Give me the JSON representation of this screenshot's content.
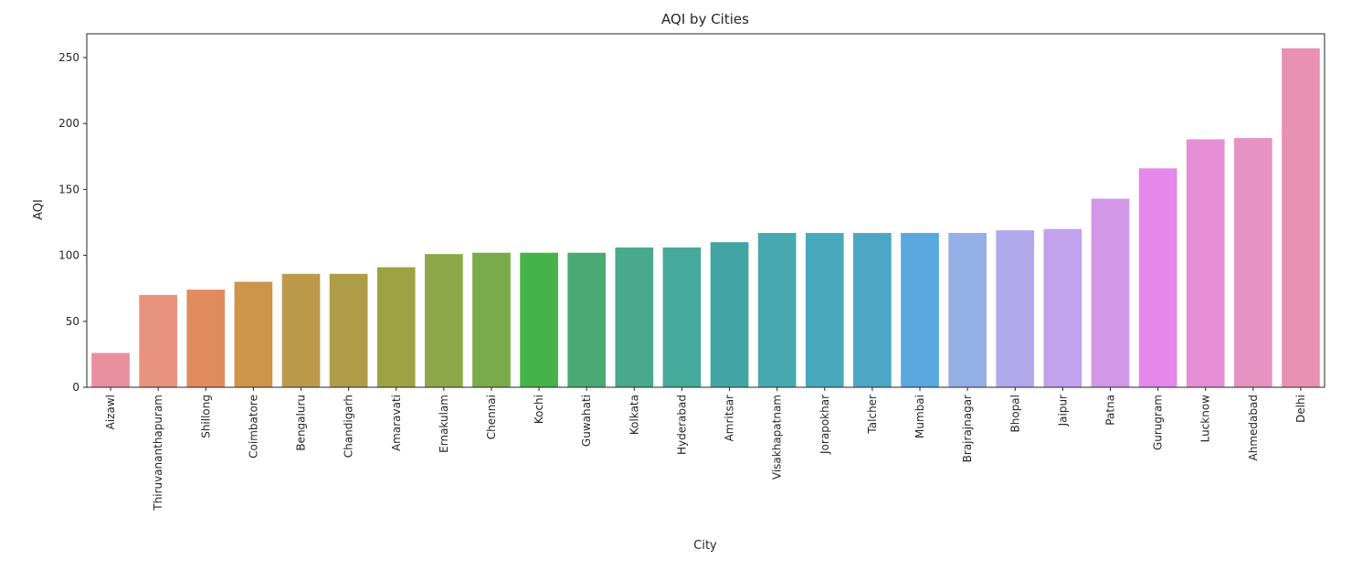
{
  "chart_data": {
    "type": "bar",
    "title": "AQI by Cities",
    "xlabel": "City",
    "ylabel": "AQI",
    "ylim": [
      0,
      268
    ],
    "yticks": [
      0,
      50,
      100,
      150,
      200,
      250
    ],
    "grid": false,
    "categories": [
      "Aizawl",
      "Thiruvananthapuram",
      "Shillong",
      "Coimbatore",
      "Bengaluru",
      "Chandigarh",
      "Amaravati",
      "Ernakulam",
      "Chennai",
      "Kochi",
      "Guwahati",
      "Kolkata",
      "Hyderabad",
      "Amritsar",
      "Visakhapatnam",
      "Jorapokhar",
      "Talcher",
      "Mumbai",
      "Brajrajnagar",
      "Bhopal",
      "Jaipur",
      "Patna",
      "Gurugram",
      "Lucknow",
      "Ahmedabad",
      "Delhi"
    ],
    "values": [
      26,
      70,
      74,
      80,
      86,
      86,
      91,
      101,
      102,
      102,
      102,
      106,
      106,
      110,
      117,
      117,
      117,
      117,
      117,
      119,
      120,
      143,
      166,
      188,
      189,
      257
    ],
    "colors": [
      "#e8909d",
      "#e8937d",
      "#e08b5e",
      "#cd954a",
      "#bc9a4c",
      "#ae9c48",
      "#9ea243",
      "#8da848",
      "#7aab4a",
      "#46b34a",
      "#49aa74",
      "#48a98c",
      "#47a99c",
      "#43a5a3",
      "#46a9b0",
      "#48a9bc",
      "#4ea6c5",
      "#58a8df",
      "#94afe6",
      "#b0a9eb",
      "#c2a2ec",
      "#d397e8",
      "#e489e9",
      "#e68ed6",
      "#e593c3",
      "#e891b2"
    ]
  }
}
